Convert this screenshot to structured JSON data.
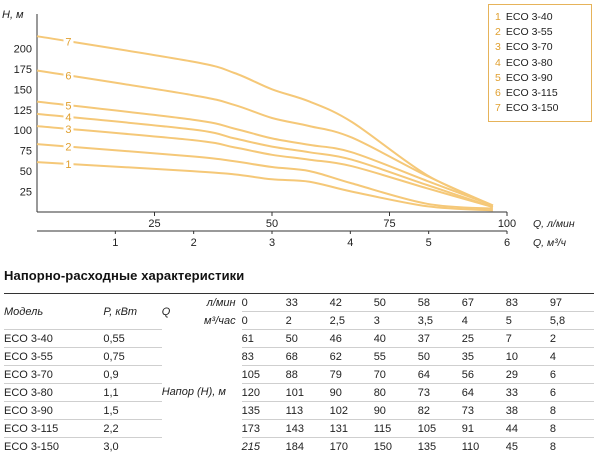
{
  "chart_data": {
    "type": "line",
    "ylabel": "H, м",
    "xlabel_top": "Q, л/мин",
    "xlabel_bottom": "Q, м³/ч",
    "y_ticks": [
      25,
      50,
      75,
      100,
      125,
      150,
      175,
      200
    ],
    "x_ticks_lmin": [
      25,
      50,
      75,
      100
    ],
    "x_ticks_m3h": [
      1,
      2,
      3,
      4,
      5,
      6
    ],
    "xlim_lmin": [
      0,
      100
    ],
    "ylim": [
      0,
      225
    ],
    "series": [
      {
        "name": "ECO 3-40",
        "label": "1",
        "x": [
          0,
          33,
          42,
          50,
          58,
          67,
          83,
          97
        ],
        "y": [
          61,
          50,
          46,
          40,
          37,
          25,
          7,
          2
        ]
      },
      {
        "name": "ECO 3-55",
        "label": "2",
        "x": [
          0,
          33,
          42,
          50,
          58,
          67,
          83,
          97
        ],
        "y": [
          83,
          68,
          62,
          55,
          50,
          35,
          10,
          4
        ]
      },
      {
        "name": "ECO 3-70",
        "label": "3",
        "x": [
          0,
          33,
          42,
          50,
          58,
          67,
          83,
          97
        ],
        "y": [
          105,
          88,
          79,
          70,
          64,
          56,
          29,
          6
        ]
      },
      {
        "name": "ECO 3-80",
        "label": "4",
        "x": [
          0,
          33,
          42,
          50,
          58,
          67,
          83,
          97
        ],
        "y": [
          120,
          101,
          90,
          80,
          73,
          64,
          33,
          6
        ]
      },
      {
        "name": "ECO 3-90",
        "label": "5",
        "x": [
          0,
          33,
          42,
          50,
          58,
          67,
          83,
          97
        ],
        "y": [
          135,
          113,
          102,
          90,
          82,
          73,
          38,
          8
        ]
      },
      {
        "name": "ECO 3-115",
        "label": "6",
        "x": [
          0,
          33,
          42,
          50,
          58,
          67,
          83,
          97
        ],
        "y": [
          173,
          143,
          131,
          115,
          105,
          91,
          44,
          8
        ]
      },
      {
        "name": "ECO 3-150",
        "label": "7",
        "x": [
          0,
          33,
          42,
          50,
          58,
          67,
          83,
          97
        ],
        "y": [
          215,
          184,
          170,
          150,
          135,
          110,
          45,
          8
        ]
      }
    ],
    "legend": [
      {
        "num": "1",
        "name": "ECO 3-40"
      },
      {
        "num": "2",
        "name": "ECO 3-55"
      },
      {
        "num": "3",
        "name": "ECO 3-70"
      },
      {
        "num": "4",
        "name": "ECO 3-80"
      },
      {
        "num": "5",
        "name": "ECO 3-90"
      },
      {
        "num": "6",
        "name": "ECO 3-115"
      },
      {
        "num": "7",
        "name": "ECO 3-150"
      }
    ],
    "curve_color": "#f5c878",
    "label_color": "#e0a030"
  },
  "table": {
    "title": "Напорно-расходные характеристики",
    "col_model": "Модель",
    "col_power": "P, кВт",
    "col_q": "Q",
    "unit_lmin": "л/мин",
    "unit_m3h": "м³/час",
    "head_label": "Напор (Н), м",
    "q_lmin": [
      "0",
      "33",
      "42",
      "50",
      "58",
      "67",
      "83",
      "97"
    ],
    "q_m3h": [
      "0",
      "2",
      "2,5",
      "3",
      "3,5",
      "4",
      "5",
      "5,8"
    ],
    "rows": [
      {
        "model": "ECO 3-40",
        "power": "0,55",
        "values": [
          "61",
          "50",
          "46",
          "40",
          "37",
          "25",
          "7",
          "2"
        ]
      },
      {
        "model": "ECO 3-55",
        "power": "0,75",
        "values": [
          "83",
          "68",
          "62",
          "55",
          "50",
          "35",
          "10",
          "4"
        ]
      },
      {
        "model": "ECO 3-70",
        "power": "0,9",
        "values": [
          "105",
          "88",
          "79",
          "70",
          "64",
          "56",
          "29",
          "6"
        ]
      },
      {
        "model": "ECO 3-80",
        "power": "1,1",
        "values": [
          "120",
          "101",
          "90",
          "80",
          "73",
          "64",
          "33",
          "6"
        ]
      },
      {
        "model": "ECO 3-90",
        "power": "1,5",
        "values": [
          "135",
          "113",
          "102",
          "90",
          "82",
          "73",
          "38",
          "8"
        ]
      },
      {
        "model": "ECO 3-115",
        "power": "2,2",
        "values": [
          "173",
          "143",
          "131",
          "115",
          "105",
          "91",
          "44",
          "8"
        ]
      },
      {
        "model": "ECO 3-150",
        "power": "3,0",
        "values": [
          "215",
          "184",
          "170",
          "150",
          "135",
          "110",
          "45",
          "8"
        ]
      }
    ]
  }
}
